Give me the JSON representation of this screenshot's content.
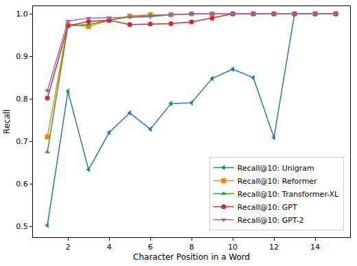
{
  "chart_data": {
    "type": "line",
    "x_label": "Character Position in a Word",
    "y_label": "Recall",
    "x": [
      1,
      2,
      3,
      4,
      5,
      6,
      7,
      8,
      9,
      10,
      11,
      12,
      13,
      14,
      15
    ],
    "series": [
      {
        "name": "Recall@10: Unigram",
        "color": "#1f77b4",
        "marker": "triangle-left",
        "values": [
          0.503,
          0.818,
          0.634,
          0.721,
          0.767,
          0.729,
          0.789,
          0.791,
          0.848,
          0.87,
          0.85,
          0.709,
          1.0,
          1.0,
          1.0
        ]
      },
      {
        "name": "Recall@10: Reformer",
        "color": "#ff7f0e",
        "marker": "square",
        "values": [
          0.711,
          0.975,
          0.97,
          0.985,
          0.995,
          0.998,
          0.998,
          1.0,
          1.0,
          1.0,
          1.0,
          1.0,
          1.0,
          1.0,
          1.0
        ]
      },
      {
        "name": "Recall@10: Transformer-XL",
        "color": "#2ca02c",
        "marker": "triangle-up",
        "values": [
          0.675,
          0.972,
          0.975,
          0.985,
          0.993,
          0.995,
          0.998,
          1.0,
          1.0,
          1.0,
          1.0,
          1.0,
          1.0,
          1.0,
          1.0
        ]
      },
      {
        "name": "Recall@10: GPT",
        "color": "#d62728",
        "marker": "circle",
        "values": [
          0.802,
          0.972,
          0.982,
          0.985,
          0.975,
          0.976,
          0.977,
          0.981,
          0.99,
          1.0,
          1.0,
          1.0,
          1.0,
          1.0,
          1.0
        ]
      },
      {
        "name": "Recall@10: GPT-2",
        "color": "#9467bd",
        "marker": "triangle-down",
        "values": [
          0.82,
          0.983,
          0.99,
          0.991,
          0.993,
          0.993,
          0.998,
          1.0,
          1.0,
          1.0,
          1.0,
          1.0,
          1.0,
          1.0,
          1.0
        ]
      }
    ],
    "xlim": [
      0.3,
      15.7
    ],
    "xticks": [
      2,
      4,
      6,
      8,
      10,
      12,
      14
    ],
    "ylim": [
      0.475,
      1.018
    ],
    "yticks": [
      0.5,
      0.6,
      0.7,
      0.8,
      0.9,
      {
        "value": 1,
        "label": "1.0"
      }
    ],
    "grid": false,
    "legend": "lower right"
  }
}
